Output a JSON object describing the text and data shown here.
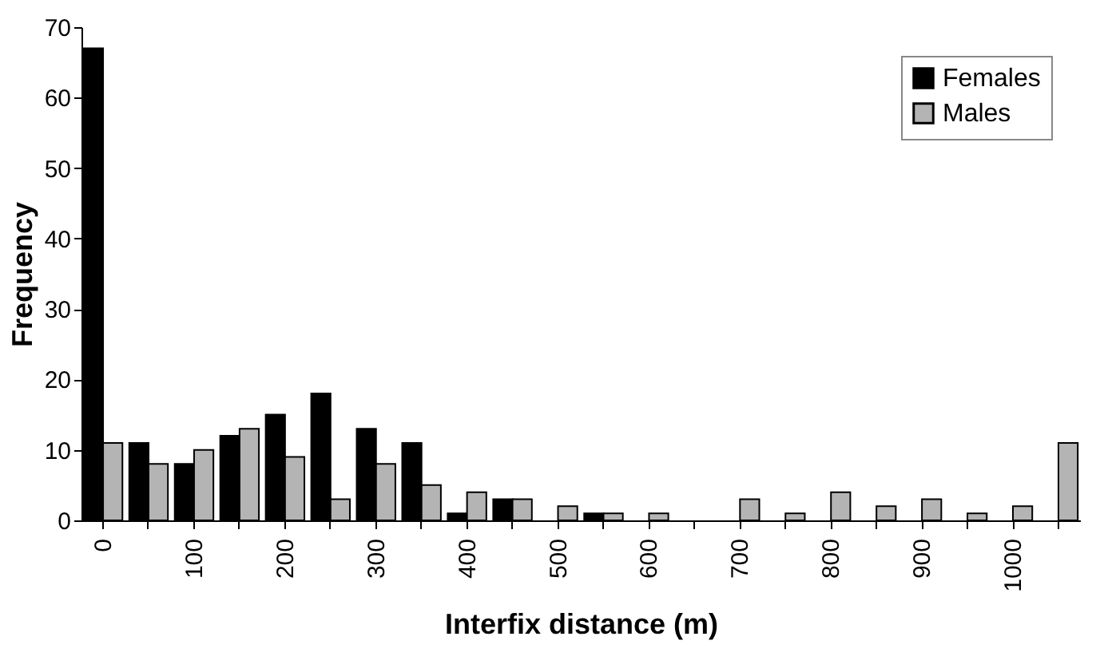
{
  "chart_data": {
    "type": "bar",
    "xlabel": "Interfix distance (m)",
    "ylabel": "Frequency",
    "categories": [
      "0",
      null,
      "100",
      null,
      "200",
      null,
      "300",
      null,
      "400",
      null,
      "500",
      null,
      "600",
      null,
      "700",
      null,
      "800",
      null,
      "900",
      null,
      "1000",
      null
    ],
    "series": [
      {
        "name": "Females",
        "color": "#000000",
        "values": [
          67,
          11,
          8,
          12,
          15,
          18,
          13,
          11,
          1,
          3,
          0,
          1,
          0,
          0,
          0,
          0,
          0,
          0,
          0,
          0,
          0,
          0
        ]
      },
      {
        "name": "Males",
        "color": "#b4b4b4",
        "values": [
          11,
          8,
          10,
          13,
          9,
          3,
          8,
          5,
          4,
          3,
          2,
          1,
          1,
          0,
          3,
          1,
          4,
          2,
          3,
          1,
          2,
          11
        ]
      }
    ],
    "ylim": [
      0,
      70
    ],
    "yticks": [
      0,
      10,
      20,
      30,
      40,
      50,
      60,
      70
    ],
    "grid": false,
    "legend": "top right"
  }
}
